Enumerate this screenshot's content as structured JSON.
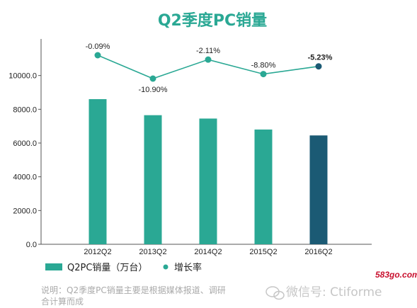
{
  "colors": {
    "bar": "#2aa894",
    "bar_highlight": "#1b5a74",
    "line": "#2aa894",
    "point_highlight": "#1b5a74",
    "title": "#2aa894",
    "axis": "#555555",
    "note": "#aaaaaa"
  },
  "chart_data": {
    "type": "bar",
    "title": "Q2季度PC销量",
    "categories": [
      "2012Q2",
      "2013Q2",
      "2014Q2",
      "2015Q2",
      "2016Q2"
    ],
    "y_ticks": [
      "0.0",
      "2000.0",
      "4000.0",
      "6000.0",
      "8000.0",
      "10000.0"
    ],
    "ylim": [
      0,
      12000
    ],
    "series": [
      {
        "name": "Q2PC销量（万台）",
        "type": "bar",
        "values": [
          8600,
          7650,
          7450,
          6800,
          6450
        ]
      },
      {
        "name": "增长率",
        "type": "line",
        "values": [
          -0.09,
          -10.9,
          -2.11,
          -8.8,
          -5.23
        ],
        "labels": [
          "-0.09%",
          "-10.90%",
          "-2.11%",
          "-8.80%",
          "-5.23%"
        ]
      }
    ],
    "highlight_index": 4,
    "legend_position": "bottom-left"
  },
  "note": {
    "line1": "说明：Q2季度PC销量主要是根据媒体报道、调研",
    "line2": "合计算而成"
  },
  "watermark": {
    "text": "微信号: Ctiforme",
    "site": "583go.com"
  }
}
